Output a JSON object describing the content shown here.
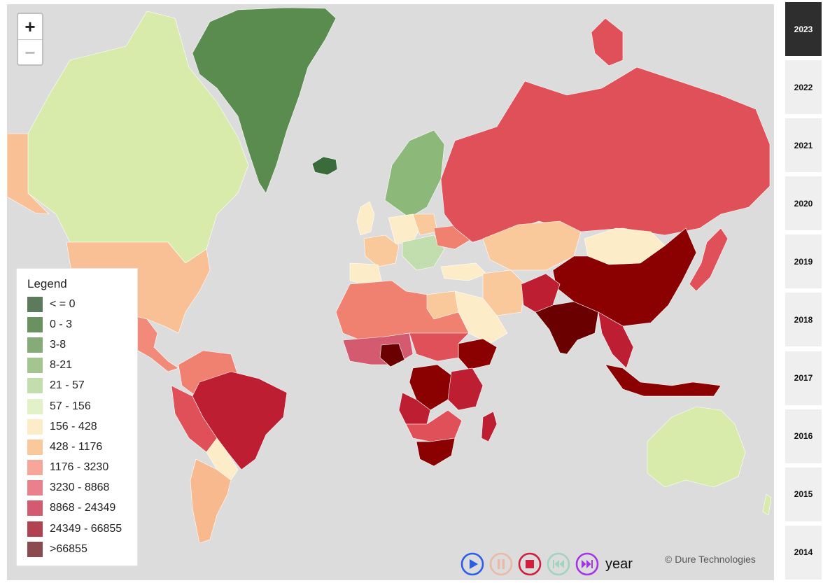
{
  "map": {
    "zoom_in": "+",
    "zoom_out": "−",
    "credit": "© Dure Technologies",
    "colors": {
      "ocean": "#dcdcdc",
      "greenland": "#5a8c50",
      "canada": "#d8ebab",
      "usa": "#f8c094",
      "russia": "#e05058",
      "china": "#8b0000",
      "india": "#6b0000",
      "brazil": "#be1e32",
      "australia": "#d8ebab"
    }
  },
  "legend": {
    "title": "Legend",
    "items": [
      {
        "label": "< = 0",
        "color": "#5c7a5c"
      },
      {
        "label": "0 - 3",
        "color": "#6a9160"
      },
      {
        "label": "3-8",
        "color": "#84ab78"
      },
      {
        "label": "8-21",
        "color": "#a3c590"
      },
      {
        "label": "21 - 57",
        "color": "#c3deae"
      },
      {
        "label": "57 - 156",
        "color": "#e3f1c8"
      },
      {
        "label": "156 - 428",
        "color": "#fdecc8"
      },
      {
        "label": "428 - 1176",
        "color": "#f9c99c"
      },
      {
        "label": "1176 - 3230",
        "color": "#f6a799"
      },
      {
        "label": "3230 - 8868",
        "color": "#e9808c"
      },
      {
        "label": "8868 - 24349",
        "color": "#d45a6f"
      },
      {
        "label": "24349 - 66855",
        "color": "#b0434f"
      },
      {
        "label": ">66855",
        "color": "#8a4a4e"
      }
    ]
  },
  "controls": {
    "year_label": "year",
    "buttons": [
      {
        "name": "play-icon",
        "color": "#2a5ee8"
      },
      {
        "name": "pause-icon",
        "color": "#eab9a8"
      },
      {
        "name": "stop-icon",
        "color": "#d21e3c"
      },
      {
        "name": "skip-back-icon",
        "color": "#9fd4bf"
      },
      {
        "name": "skip-forward-icon",
        "color": "#a435e6"
      }
    ]
  },
  "years": {
    "selected": "2023",
    "items": [
      "2023",
      "2022",
      "2021",
      "2020",
      "2019",
      "2018",
      "2017",
      "2016",
      "2015",
      "2014"
    ]
  }
}
